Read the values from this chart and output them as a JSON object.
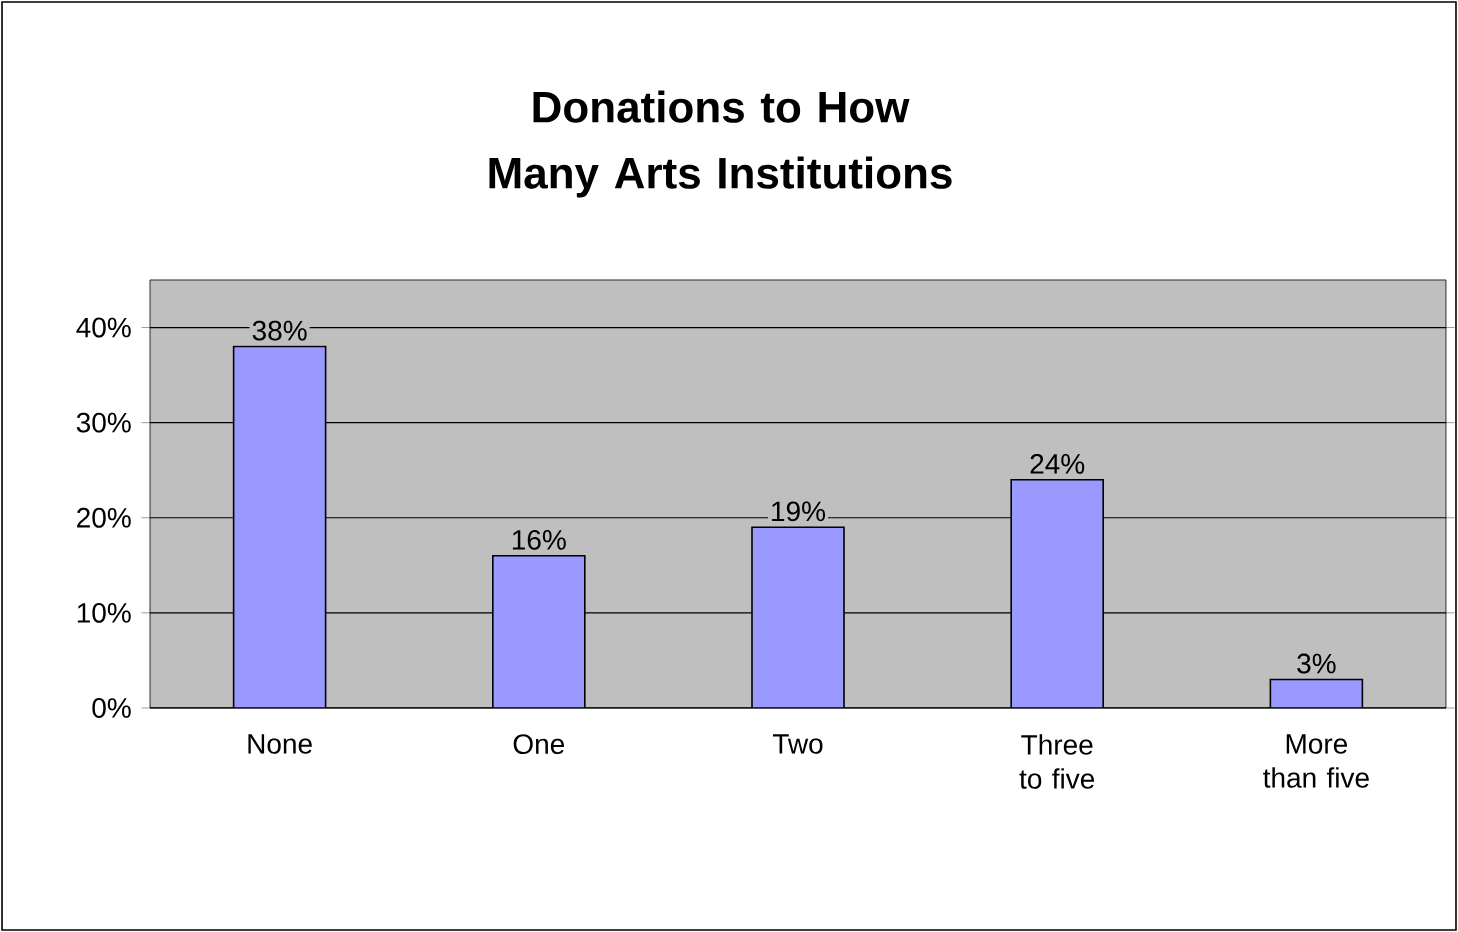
{
  "chart_data": {
    "type": "bar",
    "title": "Donations to How Many Arts Institutions",
    "categories": [
      "None",
      "One",
      "Two",
      "Three to five",
      "More than five"
    ],
    "values": [
      38,
      16,
      19,
      24,
      3
    ],
    "value_labels": [
      "38%",
      "16%",
      "19%",
      "24%",
      "3%"
    ],
    "color": "#9999ff",
    "ylim": [
      0,
      45
    ],
    "yticks": [
      {
        "value": 0,
        "label": "0%"
      },
      {
        "value": 10,
        "label": "10%"
      },
      {
        "value": 20,
        "label": "20%"
      },
      {
        "value": 30,
        "label": "30%"
      },
      {
        "value": 40,
        "label": "40%"
      }
    ],
    "grid": "y"
  }
}
